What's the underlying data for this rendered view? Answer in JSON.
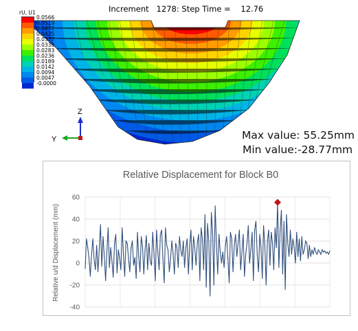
{
  "header": {
    "increment_label": "Increment",
    "increment_value": "1278:",
    "step_time_label": "Step Time =",
    "step_time_value": "12.76"
  },
  "legend": {
    "title": "rU, U1",
    "values": [
      "0.0566",
      "0.0519",
      "0.0472",
      "0.0425",
      "0.0377",
      "0.0330",
      "0.0283",
      "0.0236",
      "0.0189",
      "0.0142",
      "0.0094",
      "0.0047",
      "-0.0000"
    ],
    "colors": [
      "#ff0000",
      "#ff5a00",
      "#ff9c00",
      "#ffd200",
      "#e6ff00",
      "#9cff00",
      "#3cf000",
      "#00e05a",
      "#00d2b4",
      "#00b4e6",
      "#0088f0",
      "#005ae6",
      "#0028d2"
    ]
  },
  "triad": {
    "z_label": "Z",
    "y_label": "Y"
  },
  "stats": {
    "max": "Max value: 55.25mm",
    "min": "Min value:-28.77mm"
  },
  "chart_data": {
    "type": "line",
    "title": "Relative Displacement for Block  B0",
    "xlabel": "",
    "ylabel": "Relative u/d Displacement (mm)",
    "ylim": [
      -40,
      60
    ],
    "yticks": [
      -40,
      -20,
      0,
      20,
      40,
      60
    ],
    "grid": true,
    "line_color": "#2e4d7a",
    "marker_color": "#c0161b",
    "peak": {
      "index": 151,
      "value": 55.25
    },
    "series": [
      {
        "values": [
          -5,
          22,
          14,
          4,
          -12,
          8,
          22,
          3,
          -6,
          16,
          -8,
          12,
          35,
          -3,
          24,
          6,
          -16,
          10,
          32,
          -4,
          14,
          2,
          -13,
          18,
          26,
          -9,
          12,
          4,
          -6,
          32,
          8,
          -12,
          20,
          18,
          4,
          -8,
          14,
          20,
          -2,
          5,
          -14,
          28,
          6,
          -8,
          24,
          15,
          -10,
          12,
          25,
          -6,
          18,
          2,
          -2,
          28,
          8,
          -16,
          30,
          10,
          -6,
          26,
          30,
          4,
          -18,
          32,
          16,
          12,
          -8,
          4,
          20,
          8,
          -10,
          18,
          14,
          -4,
          24,
          12,
          6,
          20,
          -4,
          14,
          22,
          -10,
          16,
          30,
          -6,
          24,
          14,
          -2,
          18,
          26,
          -16,
          32,
          22,
          -6,
          44,
          -22,
          36,
          20,
          -30,
          46,
          28,
          -20,
          52,
          18,
          -10,
          26,
          10,
          0,
          10,
          -4,
          16,
          24,
          4,
          -18,
          28,
          22,
          -8,
          16,
          26,
          6,
          18,
          30,
          -6,
          10,
          26,
          -12,
          8,
          18,
          34,
          0,
          12,
          28,
          -16,
          30,
          38,
          8,
          -8,
          26,
          14,
          -14,
          34,
          16,
          -20,
          20,
          30,
          -2,
          28,
          18,
          -6,
          32,
          14,
          55,
          -4,
          30,
          48,
          -10,
          38,
          -24,
          44,
          18,
          6,
          30,
          8,
          22,
          14,
          0,
          28,
          6,
          22,
          2,
          24,
          8,
          12,
          20,
          18,
          4,
          16,
          6,
          12,
          8,
          14,
          10,
          8,
          12,
          10,
          8,
          12,
          10,
          11,
          9,
          10,
          8,
          11
        ]
      }
    ]
  }
}
